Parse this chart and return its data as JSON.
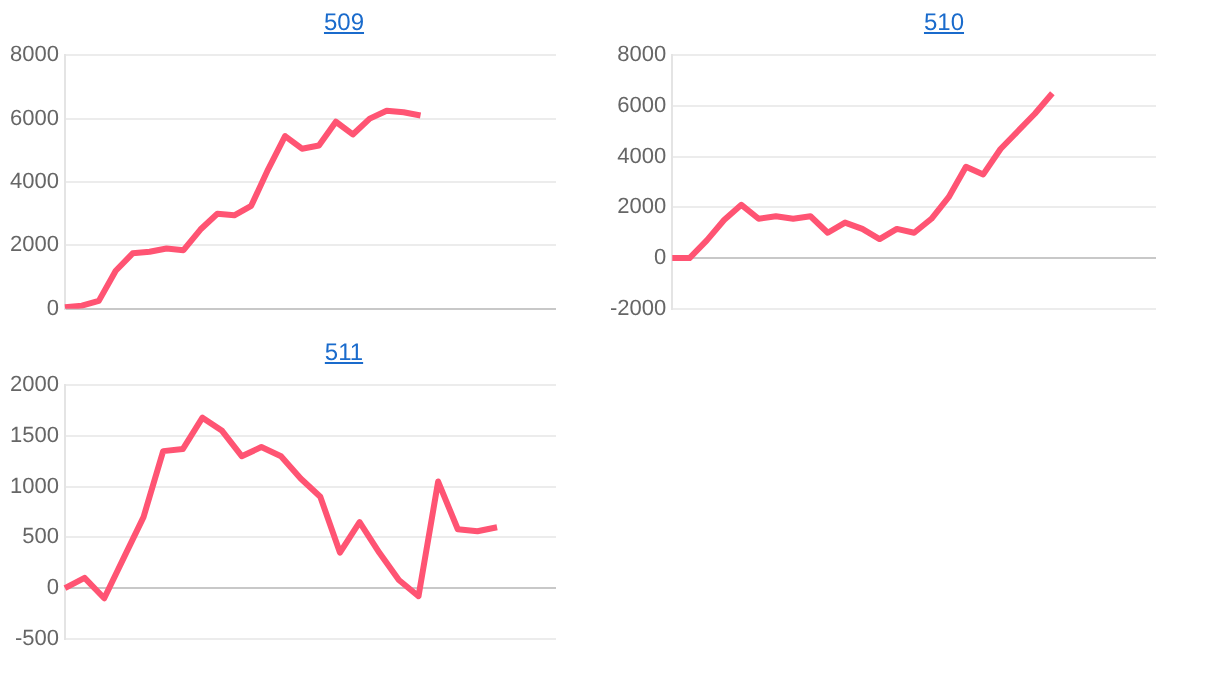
{
  "chart_data": [
    {
      "type": "line",
      "title": "509",
      "categories": [
        null,
        null,
        null,
        null,
        null,
        null,
        null,
        null,
        null,
        null,
        null,
        null,
        null,
        null,
        null,
        null,
        null,
        null,
        null,
        null,
        null,
        null,
        null,
        null,
        null,
        null,
        null,
        null,
        null,
        null
      ],
      "series": [
        {
          "color": "#ff5473",
          "values": [
            50,
            100,
            250,
            1200,
            1750,
            1800,
            1900,
            1850,
            2500,
            3000,
            2950,
            3250,
            4400,
            5450,
            5050,
            5150,
            5900,
            5500,
            6000,
            6250,
            6200,
            6100,
            null,
            null,
            null,
            null,
            null,
            null,
            null,
            null
          ]
        }
      ],
      "ylim": [
        0,
        8000
      ],
      "yticks": [
        0,
        2000,
        4000,
        6000,
        8000
      ],
      "grid": "y",
      "tick_labels": "y",
      "marker": "none"
    },
    {
      "type": "line",
      "title": "510",
      "categories": [
        null,
        null,
        null,
        null,
        null,
        null,
        null,
        null,
        null,
        null,
        null,
        null,
        null,
        null,
        null,
        null,
        null,
        null,
        null,
        null,
        null,
        null,
        null,
        null,
        null,
        null,
        null,
        null,
        null
      ],
      "series": [
        {
          "color": "#ff5473",
          "values": [
            0,
            0,
            700,
            1500,
            2100,
            1550,
            1650,
            1550,
            1650,
            1000,
            1400,
            1150,
            750,
            1150,
            1000,
            1550,
            2400,
            3600,
            3300,
            4300,
            5000,
            5700,
            6500,
            null,
            null,
            null,
            null,
            null,
            null
          ]
        }
      ],
      "ylim": [
        -2000,
        8000
      ],
      "yticks": [
        -2000,
        0,
        2000,
        4000,
        6000,
        8000
      ],
      "grid": "y",
      "tick_labels": "y",
      "marker": "none"
    },
    {
      "type": "line",
      "title": "511",
      "categories": [
        null,
        null,
        null,
        null,
        null,
        null,
        null,
        null,
        null,
        null,
        null,
        null,
        null,
        null,
        null,
        null,
        null,
        null,
        null,
        null,
        null,
        null,
        null,
        null,
        null,
        null
      ],
      "series": [
        {
          "color": "#ff5473",
          "values": [
            0,
            100,
            -100,
            300,
            700,
            1350,
            1370,
            1680,
            1550,
            1300,
            1390,
            1300,
            1080,
            900,
            350,
            650,
            350,
            80,
            -80,
            1050,
            580,
            560,
            600,
            null,
            null,
            null
          ]
        }
      ],
      "ylim": [
        -500,
        2000
      ],
      "yticks": [
        -500,
        0,
        500,
        1000,
        1500,
        2000
      ],
      "grid": "y",
      "tick_labels": "y",
      "marker": "none"
    }
  ]
}
